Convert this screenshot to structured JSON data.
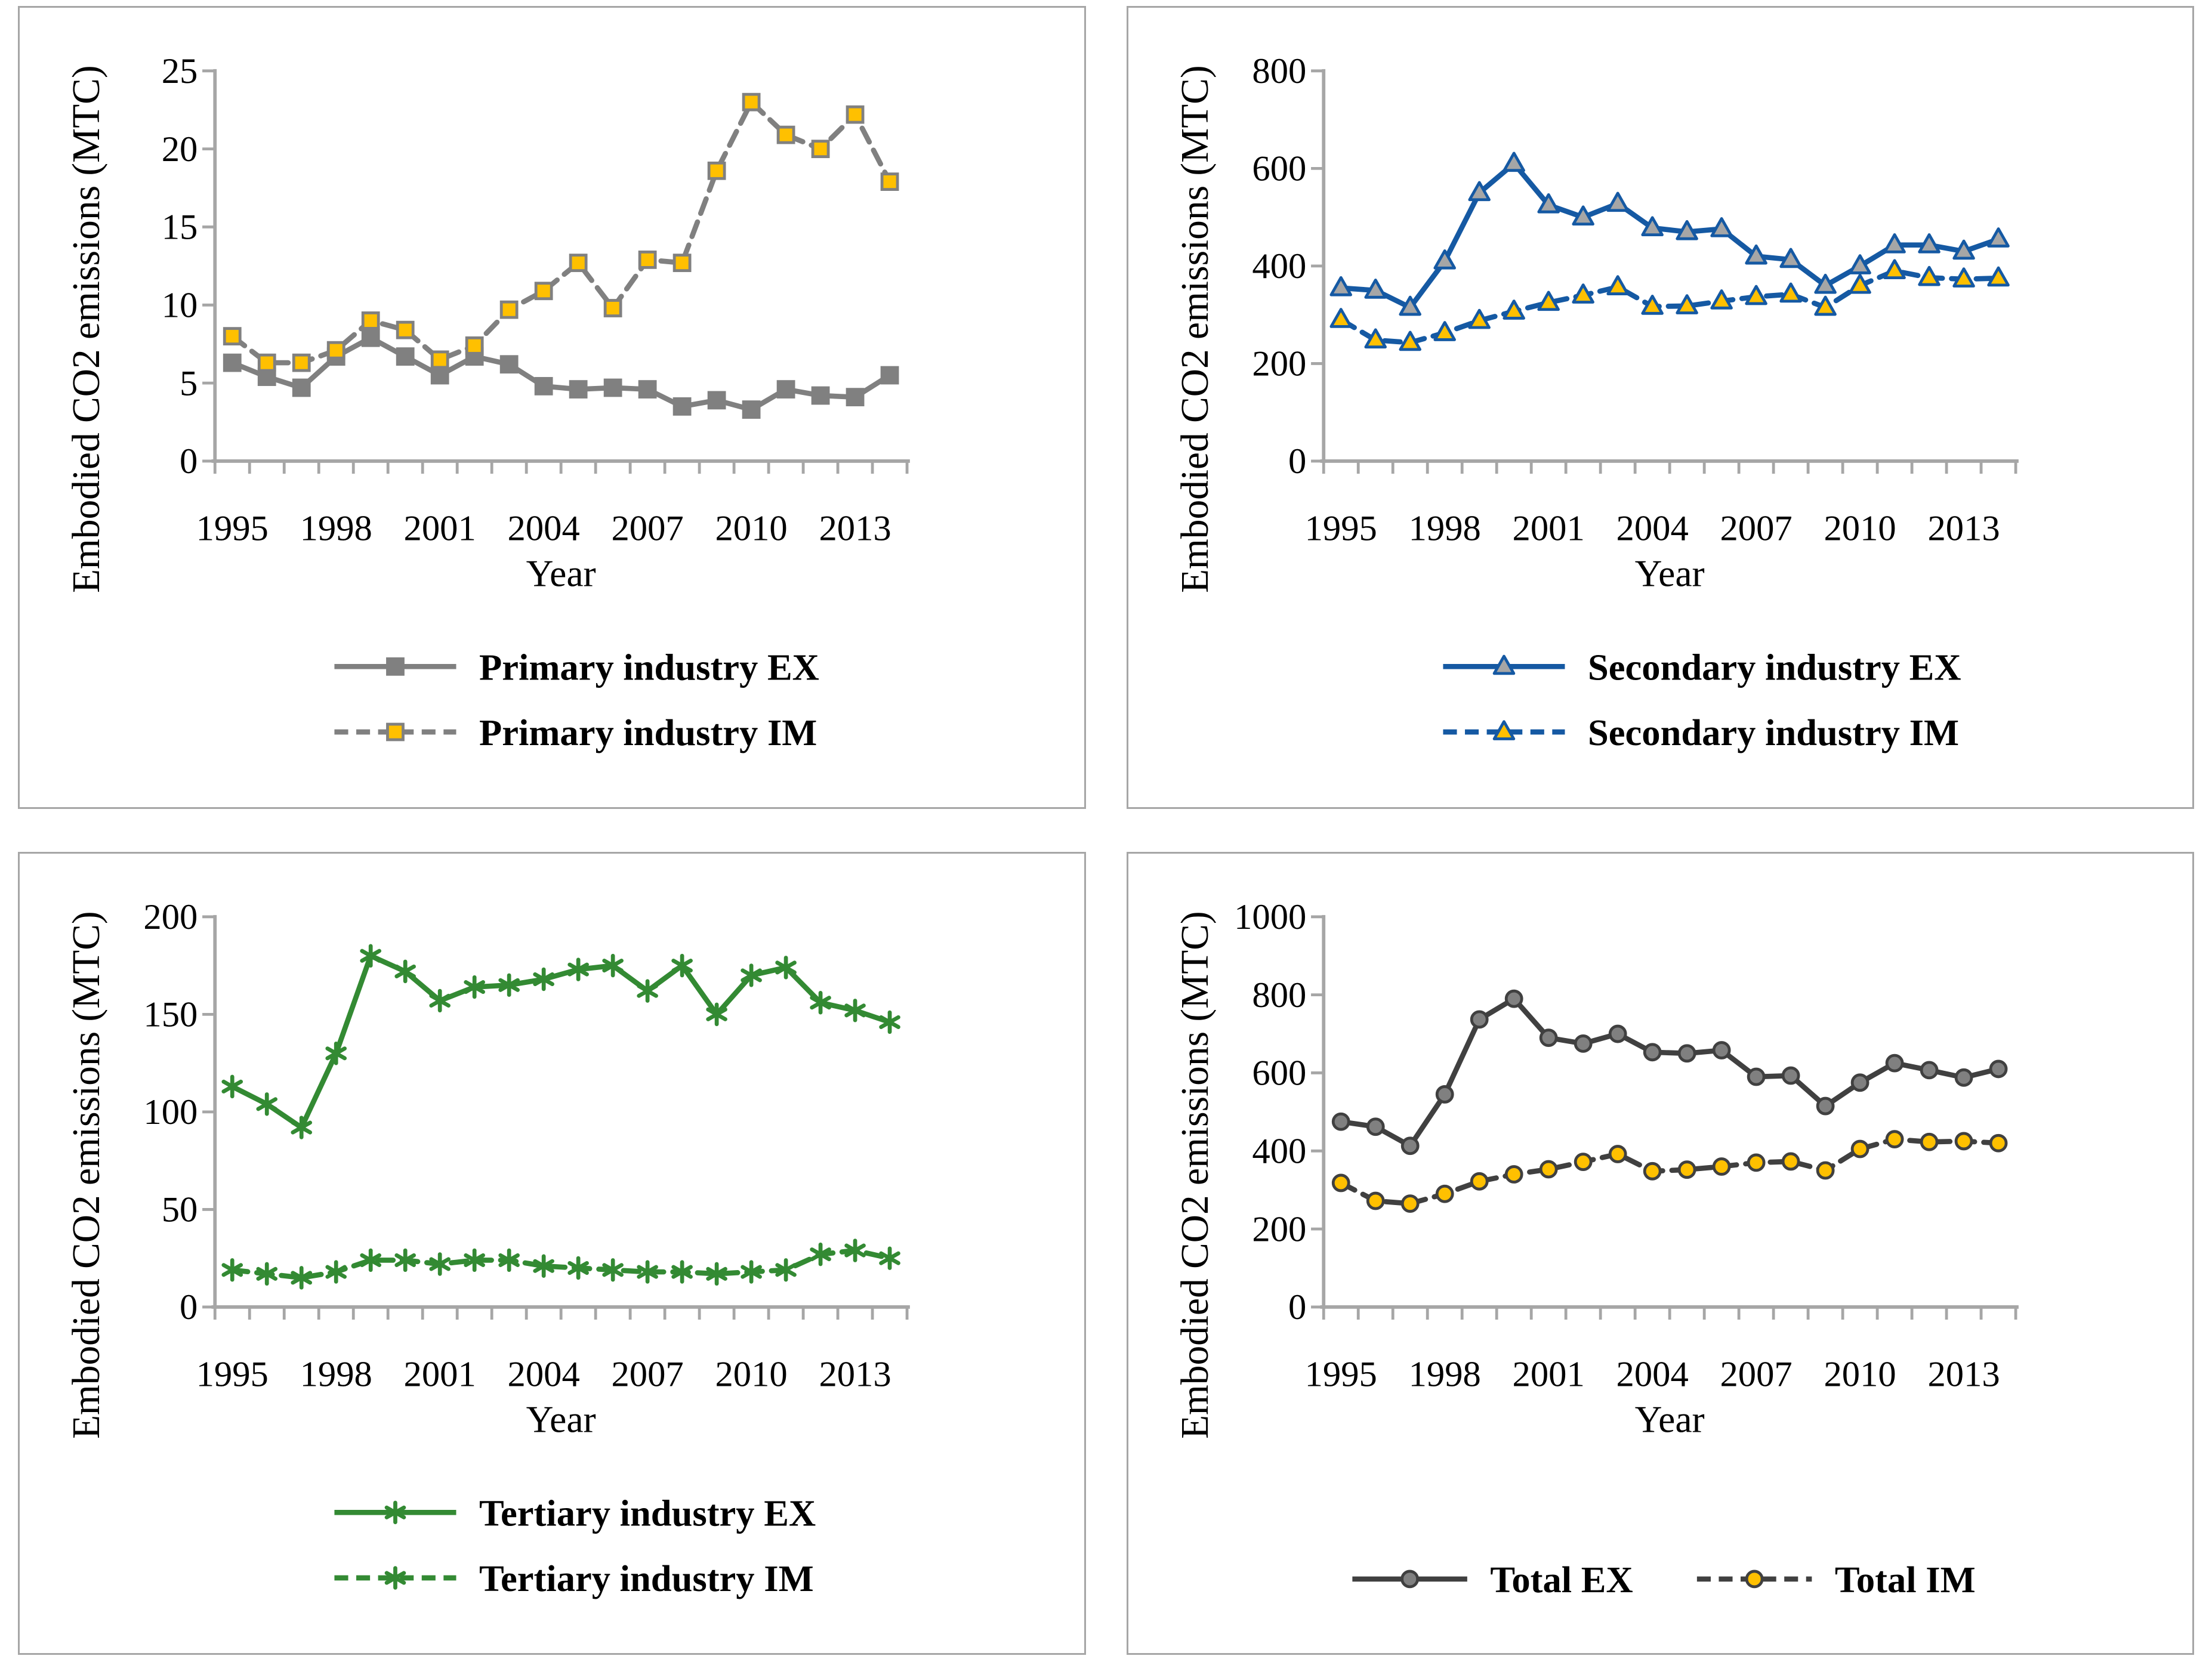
{
  "page": {
    "background": "#FFFFFF",
    "axis_color": "#A6A6A6",
    "text_color": "#000000"
  },
  "chart_data": [
    {
      "id": "primary",
      "type": "line",
      "title": "",
      "xlabel": "Year",
      "ylabel": "Embodied CO2 emissions (MTC)",
      "x": [
        1995,
        1996,
        1997,
        1998,
        1999,
        2000,
        2001,
        2002,
        2003,
        2004,
        2005,
        2006,
        2007,
        2008,
        2009,
        2010,
        2011,
        2012,
        2013,
        2014
      ],
      "xtick_labels": [
        "1995",
        "1998",
        "2001",
        "2004",
        "2007",
        "2010",
        "2013"
      ],
      "ylim": [
        0,
        25
      ],
      "ytick_step": 5,
      "grid": false,
      "legend_position": "bottom-stacked",
      "series": [
        {
          "name": "Primary industry EX",
          "line_style": "solid",
          "color": "#808080",
          "marker": "square",
          "marker_fill": "#808080",
          "marker_stroke": "#808080",
          "values": [
            6.3,
            5.4,
            4.7,
            6.7,
            7.9,
            6.7,
            5.5,
            6.7,
            6.2,
            4.8,
            4.6,
            4.7,
            4.6,
            3.5,
            3.9,
            3.3,
            4.6,
            4.2,
            4.1,
            5.5
          ]
        },
        {
          "name": "Primary industry IM",
          "line_style": "dashed",
          "color": "#808080",
          "marker": "square",
          "marker_fill": "#FFC000",
          "marker_stroke": "#808080",
          "values": [
            8.0,
            6.3,
            6.3,
            7.1,
            9.0,
            8.4,
            6.5,
            7.4,
            9.7,
            10.9,
            12.7,
            9.8,
            12.9,
            12.7,
            18.6,
            23.0,
            20.9,
            20.0,
            22.2,
            17.9
          ]
        }
      ]
    },
    {
      "id": "secondary",
      "type": "line",
      "title": "",
      "xlabel": "Year",
      "ylabel": "Embodied CO2 emissions (MTC)",
      "x": [
        1995,
        1996,
        1997,
        1998,
        1999,
        2000,
        2001,
        2002,
        2003,
        2004,
        2005,
        2006,
        2007,
        2008,
        2009,
        2010,
        2011,
        2012,
        2013,
        2014
      ],
      "xtick_labels": [
        "1995",
        "1998",
        "2001",
        "2004",
        "2007",
        "2010",
        "2013"
      ],
      "ylim": [
        0,
        800
      ],
      "ytick_step": 200,
      "grid": false,
      "legend_position": "bottom-stacked",
      "series": [
        {
          "name": "Secondary industry EX",
          "line_style": "solid",
          "color": "#1559A3",
          "marker": "triangle",
          "marker_fill": "#A6A6A6",
          "marker_stroke": "#1559A3",
          "values": [
            355,
            350,
            315,
            410,
            550,
            610,
            525,
            500,
            528,
            478,
            470,
            476,
            420,
            413,
            360,
            400,
            443,
            443,
            430,
            455
          ]
        },
        {
          "name": "Secondary industry IM",
          "line_style": "dashed",
          "color": "#1559A3",
          "marker": "triangle",
          "marker_fill": "#FFC000",
          "marker_stroke": "#1559A3",
          "values": [
            290,
            248,
            243,
            263,
            288,
            307,
            325,
            340,
            357,
            317,
            318,
            328,
            337,
            342,
            315,
            360,
            390,
            376,
            373,
            375
          ]
        }
      ]
    },
    {
      "id": "tertiary",
      "type": "line",
      "title": "",
      "xlabel": "Year",
      "ylabel": "Embodied CO2 emissions (MTC)",
      "x": [
        1995,
        1996,
        1997,
        1998,
        1999,
        2000,
        2001,
        2002,
        2003,
        2004,
        2005,
        2006,
        2007,
        2008,
        2009,
        2010,
        2011,
        2012,
        2013,
        2014
      ],
      "xtick_labels": [
        "1995",
        "1998",
        "2001",
        "2004",
        "2007",
        "2010",
        "2013"
      ],
      "ylim": [
        0,
        200
      ],
      "ytick_step": 50,
      "grid": false,
      "legend_position": "bottom-stacked",
      "series": [
        {
          "name": "Tertiary industry EX",
          "line_style": "solid",
          "color": "#338A33",
          "marker": "asterisk",
          "marker_fill": "none",
          "marker_stroke": "#338A33",
          "values": [
            113,
            104,
            92,
            130,
            180,
            172,
            157,
            164,
            165,
            168,
            173,
            175,
            162,
            175,
            150,
            170,
            174,
            156,
            152,
            146
          ]
        },
        {
          "name": "Tertiary industry IM",
          "line_style": "dashed",
          "color": "#338A33",
          "marker": "asterisk",
          "marker_fill": "none",
          "marker_stroke": "#338A33",
          "values": [
            19,
            17,
            15,
            18,
            24,
            24,
            22,
            24,
            24,
            21,
            20,
            19,
            18,
            18,
            17,
            18,
            19,
            27,
            29,
            25
          ]
        }
      ]
    },
    {
      "id": "total",
      "type": "line",
      "title": "",
      "xlabel": "Year",
      "ylabel": "Embodied CO2 emissions (MTC)",
      "x": [
        1995,
        1996,
        1997,
        1998,
        1999,
        2000,
        2001,
        2002,
        2003,
        2004,
        2005,
        2006,
        2007,
        2008,
        2009,
        2010,
        2011,
        2012,
        2013,
        2014
      ],
      "xtick_labels": [
        "1995",
        "1998",
        "2001",
        "2004",
        "2007",
        "2010",
        "2013"
      ],
      "ylim": [
        0,
        1000
      ],
      "ytick_step": 200,
      "grid": false,
      "legend_position": "bottom-row",
      "series": [
        {
          "name": "Total EX",
          "line_style": "solid",
          "color": "#404040",
          "marker": "circle",
          "marker_fill": "#808080",
          "marker_stroke": "#404040",
          "values": [
            475,
            462,
            413,
            545,
            737,
            790,
            690,
            675,
            700,
            653,
            650,
            658,
            590,
            593,
            515,
            575,
            625,
            607,
            588,
            610
          ]
        },
        {
          "name": "Total IM",
          "line_style": "dashed",
          "color": "#404040",
          "marker": "circle",
          "marker_fill": "#FFC000",
          "marker_stroke": "#404040",
          "values": [
            318,
            272,
            265,
            290,
            322,
            340,
            353,
            372,
            392,
            348,
            352,
            360,
            370,
            373,
            350,
            405,
            430,
            423,
            425,
            420
          ]
        }
      ]
    }
  ]
}
